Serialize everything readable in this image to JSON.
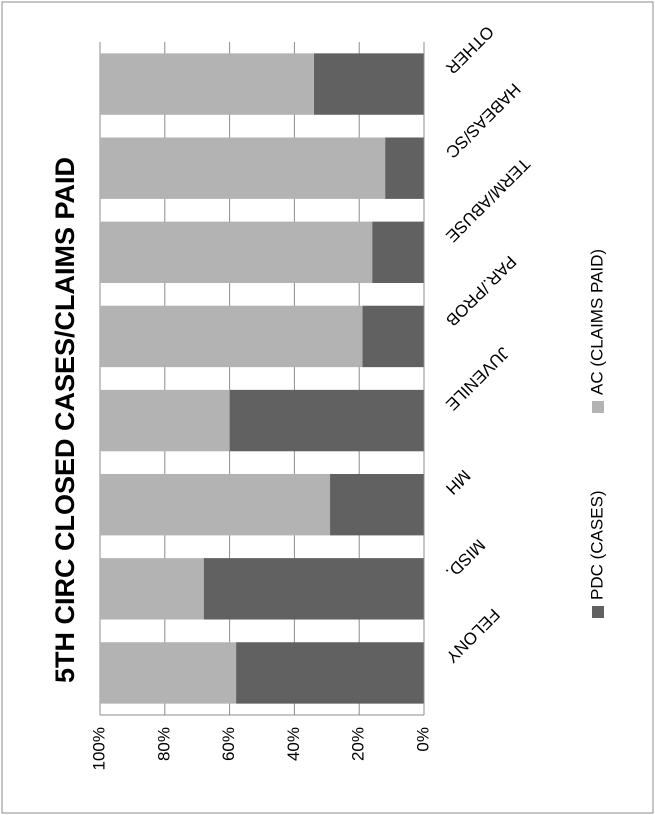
{
  "chart_data": {
    "type": "bar",
    "stacked": true,
    "percent": true,
    "orientation": "rotated-90",
    "title": "5TH CIRC CLOSED CASES/CLAIMS PAID",
    "categories": [
      "FELONY",
      "MISD.",
      "MH",
      "JUVENILE",
      "PAR./PROB",
      "TERM/ABUSE",
      "HABEAS/SC",
      "OTHER"
    ],
    "series": [
      {
        "name": "PDC (CASES)",
        "color": "#616161",
        "values": [
          58,
          68,
          29,
          60,
          19,
          16,
          12,
          34
        ]
      },
      {
        "name": "AC (CLAIMS PAID)",
        "color": "#b3b3b3",
        "values": [
          42,
          32,
          71,
          40,
          81,
          84,
          88,
          66
        ]
      }
    ],
    "value_ticks": [
      "0%",
      "20%",
      "40%",
      "60%",
      "80%",
      "100%"
    ],
    "ylim": [
      0,
      100
    ],
    "grid": true,
    "legend_position": "bottom"
  }
}
